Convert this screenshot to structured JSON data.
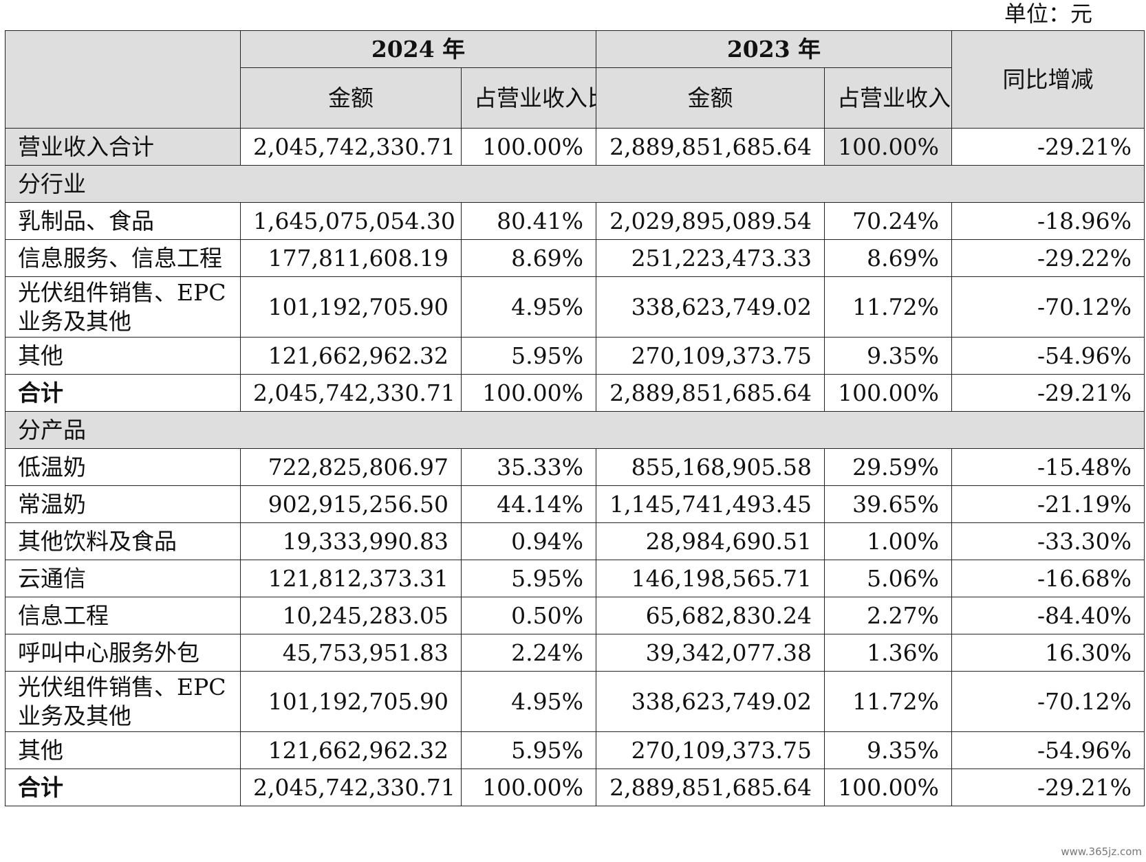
{
  "unit": "单位：元",
  "header": {
    "year_2024": "2024 年",
    "year_2023": "2023 年",
    "yoy": "同比增减",
    "amount": "金额",
    "share": "占营业收入比重"
  },
  "total_revenue": {
    "label": "营业收入合计",
    "amt_2024": "2,045,742,330.71",
    "pct_2024": "100.00%",
    "amt_2023": "2,889,851,685.64",
    "pct_2023": "100.00%",
    "yoy": "-29.21%"
  },
  "by_industry": {
    "title": "分行业",
    "rows": [
      {
        "label": "乳制品、食品",
        "amt_2024": "1,645,075,054.30",
        "pct_2024": "80.41%",
        "amt_2023": "2,029,895,089.54",
        "pct_2023": "70.24%",
        "yoy": "-18.96%"
      },
      {
        "label": "信息服务、信息工程",
        "amt_2024": "177,811,608.19",
        "pct_2024": "8.69%",
        "amt_2023": "251,223,473.33",
        "pct_2023": "8.69%",
        "yoy": "-29.22%"
      },
      {
        "label": "光伏组件销售、EPC 业务及其他",
        "amt_2024": "101,192,705.90",
        "pct_2024": "4.95%",
        "amt_2023": "338,623,749.02",
        "pct_2023": "11.72%",
        "yoy": "-70.12%"
      },
      {
        "label": "其他",
        "amt_2024": "121,662,962.32",
        "pct_2024": "5.95%",
        "amt_2023": "270,109,373.75",
        "pct_2023": "9.35%",
        "yoy": "-54.96%"
      }
    ],
    "total": {
      "label": "合计",
      "amt_2024": "2,045,742,330.71",
      "pct_2024": "100.00%",
      "amt_2023": "2,889,851,685.64",
      "pct_2023": "100.00%",
      "yoy": "-29.21%"
    }
  },
  "by_product": {
    "title": "分产品",
    "rows": [
      {
        "label": "低温奶",
        "amt_2024": "722,825,806.97",
        "pct_2024": "35.33%",
        "amt_2023": "855,168,905.58",
        "pct_2023": "29.59%",
        "yoy": "-15.48%"
      },
      {
        "label": "常温奶",
        "amt_2024": "902,915,256.50",
        "pct_2024": "44.14%",
        "amt_2023": "1,145,741,493.45",
        "pct_2023": "39.65%",
        "yoy": "-21.19%"
      },
      {
        "label": "其他饮料及食品",
        "amt_2024": "19,333,990.83",
        "pct_2024": "0.94%",
        "amt_2023": "28,984,690.51",
        "pct_2023": "1.00%",
        "yoy": "-33.30%"
      },
      {
        "label": "云通信",
        "amt_2024": "121,812,373.31",
        "pct_2024": "5.95%",
        "amt_2023": "146,198,565.71",
        "pct_2023": "5.06%",
        "yoy": "-16.68%"
      },
      {
        "label": "信息工程",
        "amt_2024": "10,245,283.05",
        "pct_2024": "0.50%",
        "amt_2023": "65,682,830.24",
        "pct_2023": "2.27%",
        "yoy": "-84.40%"
      },
      {
        "label": "呼叫中心服务外包",
        "amt_2024": "45,753,951.83",
        "pct_2024": "2.24%",
        "amt_2023": "39,342,077.38",
        "pct_2023": "1.36%",
        "yoy": "16.30%"
      },
      {
        "label": "光伏组件销售、EPC 业务及其他",
        "amt_2024": "101,192,705.90",
        "pct_2024": "4.95%",
        "amt_2023": "338,623,749.02",
        "pct_2023": "11.72%",
        "yoy": "-70.12%"
      },
      {
        "label": "其他",
        "amt_2024": "121,662,962.32",
        "pct_2024": "5.95%",
        "amt_2023": "270,109,373.75",
        "pct_2023": "9.35%",
        "yoy": "-54.96%"
      }
    ],
    "total": {
      "label": "合计",
      "amt_2024": "2,045,742,330.71",
      "pct_2024": "100.00%",
      "amt_2023": "2,889,851,685.64",
      "pct_2023": "100.00%",
      "yoy": "-29.21%"
    }
  },
  "watermark": "www.365jz.com"
}
